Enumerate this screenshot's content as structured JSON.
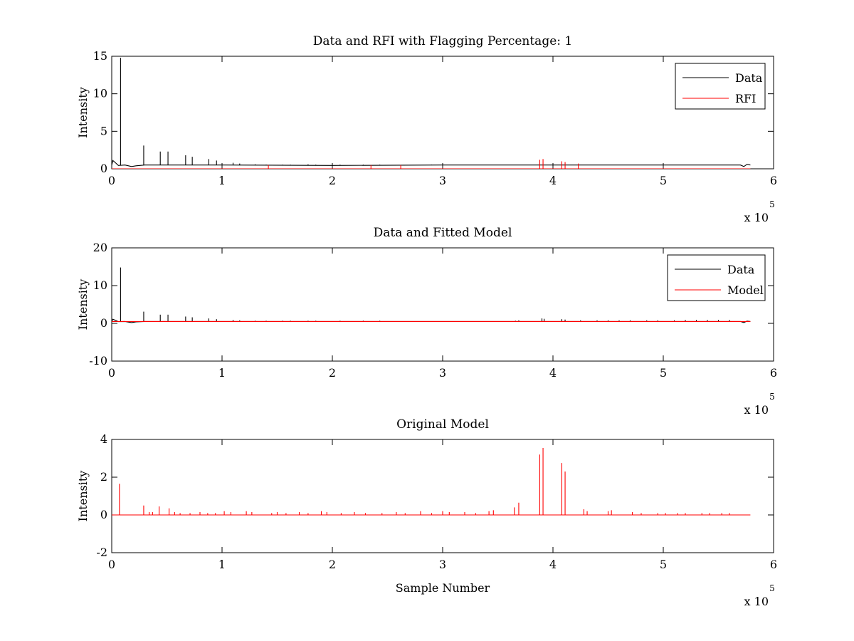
{
  "figure": {
    "background": "#ffffff",
    "colors": {
      "data": "#000000",
      "rfi": "#ff0000",
      "model": "#ff0000",
      "axes": "#000000"
    }
  },
  "chart_data": [
    {
      "type": "line",
      "title": "Data and RFI with Flagging Percentage: 1",
      "xlabel": "",
      "ylabel": "Intensity",
      "xlim": [
        0,
        6
      ],
      "ylim": [
        0,
        15
      ],
      "xticks": [
        "0",
        "1",
        "2",
        "3",
        "4",
        "5",
        "6"
      ],
      "yticks": [
        "0",
        "5",
        "10",
        "15"
      ],
      "x_multiplier": {
        "base": "x 10",
        "exponent": "5"
      },
      "legend": {
        "position": "top-right",
        "entries": [
          "Data",
          "RFI"
        ]
      },
      "series": [
        {
          "name": "Data",
          "color": "#000000",
          "baseline": [
            [
              0,
              0.5
            ],
            [
              0.01,
              1.1
            ],
            [
              0.03,
              0.85
            ],
            [
              0.06,
              0.45
            ],
            [
              0.12,
              0.5
            ],
            [
              0.18,
              0.3
            ],
            [
              0.22,
              0.4
            ],
            [
              0.3,
              0.5
            ],
            [
              1.0,
              0.5
            ],
            [
              2.0,
              0.45
            ],
            [
              3.0,
              0.5
            ],
            [
              4.0,
              0.5
            ],
            [
              5.0,
              0.5
            ],
            [
              5.7,
              0.5
            ],
            [
              5.73,
              0.3
            ],
            [
              5.76,
              0.6
            ],
            [
              5.79,
              0.5
            ]
          ],
          "peaks": [
            [
              0.08,
              14.8
            ],
            [
              0.29,
              3.1
            ],
            [
              0.44,
              2.3
            ],
            [
              0.51,
              2.3
            ],
            [
              0.67,
              1.8
            ],
            [
              0.73,
              1.6
            ],
            [
              0.88,
              1.3
            ],
            [
              0.95,
              1.1
            ],
            [
              1.1,
              0.8
            ],
            [
              1.16,
              0.7
            ],
            [
              1.3,
              0.6
            ],
            [
              1.4,
              0.55
            ],
            [
              1.55,
              0.55
            ],
            [
              1.62,
              0.55
            ],
            [
              1.78,
              0.6
            ],
            [
              1.85,
              0.55
            ],
            [
              2.07,
              0.55
            ],
            [
              2.28,
              0.55
            ],
            [
              2.43,
              0.55
            ],
            [
              2.57,
              0.5
            ],
            [
              2.78,
              0.5
            ],
            [
              2.9,
              0.55
            ],
            [
              3.05,
              0.5
            ],
            [
              3.2,
              0.5
            ],
            [
              3.38,
              0.5
            ],
            [
              3.52,
              0.5
            ],
            [
              3.66,
              0.5
            ],
            [
              4.52,
              0.5
            ],
            [
              4.76,
              0.5
            ],
            [
              5.0,
              0.5
            ],
            [
              5.2,
              0.5
            ]
          ]
        },
        {
          "name": "RFI",
          "color": "#ff0000",
          "peaks": [
            [
              1.42,
              0.5
            ],
            [
              2.35,
              0.5
            ],
            [
              3.88,
              1.2
            ],
            [
              3.91,
              1.3
            ],
            [
              4.08,
              1.0
            ],
            [
              4.11,
              0.9
            ],
            [
              4.23,
              0.7
            ],
            [
              2.62,
              0.5
            ]
          ]
        }
      ]
    },
    {
      "type": "line",
      "title": "Data and Fitted Model",
      "xlabel": "",
      "ylabel": "Intensity",
      "xlim": [
        0,
        6
      ],
      "ylim": [
        -10,
        20
      ],
      "xticks": [
        "0",
        "1",
        "2",
        "3",
        "4",
        "5",
        "6"
      ],
      "yticks": [
        "-10",
        "0",
        "10",
        "20"
      ],
      "x_multiplier": {
        "base": "x 10",
        "exponent": "5"
      },
      "legend": {
        "position": "top-right",
        "entries": [
          "Data",
          "Model"
        ]
      },
      "series": [
        {
          "name": "Data",
          "color": "#000000",
          "baseline": [
            [
              0,
              0.5
            ],
            [
              0.01,
              1.1
            ],
            [
              0.03,
              0.85
            ],
            [
              0.06,
              0.45
            ],
            [
              0.12,
              0.5
            ],
            [
              0.18,
              0.2
            ],
            [
              0.22,
              0.4
            ],
            [
              0.3,
              0.5
            ],
            [
              5.0,
              0.5
            ],
            [
              5.7,
              0.5
            ],
            [
              5.73,
              0.2
            ],
            [
              5.76,
              0.6
            ],
            [
              5.79,
              0.5
            ]
          ],
          "peaks": [
            [
              0.08,
              14.8
            ],
            [
              0.29,
              3.1
            ],
            [
              0.44,
              2.3
            ],
            [
              0.51,
              2.3
            ],
            [
              0.67,
              1.8
            ],
            [
              0.73,
              1.6
            ],
            [
              0.88,
              1.3
            ],
            [
              0.95,
              1.1
            ],
            [
              1.1,
              0.9
            ],
            [
              1.16,
              0.8
            ],
            [
              1.3,
              0.7
            ],
            [
              1.4,
              0.7
            ],
            [
              1.55,
              0.7
            ],
            [
              1.62,
              0.7
            ],
            [
              1.78,
              0.7
            ],
            [
              1.85,
              0.7
            ],
            [
              2.07,
              0.7
            ],
            [
              2.28,
              0.7
            ],
            [
              2.43,
              0.7
            ],
            [
              3.66,
              0.7
            ],
            [
              3.69,
              0.8
            ],
            [
              3.9,
              1.3
            ],
            [
              3.92,
              1.2
            ],
            [
              4.08,
              1.1
            ],
            [
              4.11,
              1.0
            ],
            [
              4.25,
              0.8
            ],
            [
              4.4,
              0.8
            ],
            [
              4.5,
              0.8
            ],
            [
              4.6,
              0.8
            ],
            [
              4.7,
              0.8
            ],
            [
              4.85,
              0.8
            ],
            [
              4.95,
              0.8
            ],
            [
              5.1,
              0.8
            ],
            [
              5.2,
              0.9
            ],
            [
              5.3,
              0.9
            ],
            [
              5.4,
              0.9
            ],
            [
              5.5,
              0.9
            ],
            [
              5.6,
              0.9
            ]
          ]
        },
        {
          "name": "Model",
          "color": "#ff0000",
          "baseline": [
            [
              0,
              0.5
            ],
            [
              5.79,
              0.5
            ]
          ],
          "peaks": []
        }
      ]
    },
    {
      "type": "line",
      "title": "Original Model",
      "xlabel": "Sample Number",
      "ylabel": "Intensity",
      "xlim": [
        0,
        6
      ],
      "ylim": [
        -2,
        4
      ],
      "xticks": [
        "0",
        "1",
        "2",
        "3",
        "4",
        "5",
        "6"
      ],
      "yticks": [
        "-2",
        "0",
        "2",
        "4"
      ],
      "x_multiplier": {
        "base": "x 10",
        "exponent": "5"
      },
      "series": [
        {
          "color": "#ff0000",
          "baseline": [
            [
              0,
              0
            ],
            [
              5.79,
              0
            ]
          ],
          "peaks": [
            [
              0.07,
              1.65
            ],
            [
              0.29,
              0.5
            ],
            [
              0.34,
              0.15
            ],
            [
              0.37,
              0.15
            ],
            [
              0.43,
              0.45
            ],
            [
              0.52,
              0.35
            ],
            [
              0.57,
              0.15
            ],
            [
              0.62,
              0.1
            ],
            [
              0.71,
              0.1
            ],
            [
              0.8,
              0.15
            ],
            [
              0.87,
              0.1
            ],
            [
              0.94,
              0.1
            ],
            [
              1.02,
              0.2
            ],
            [
              1.08,
              0.15
            ],
            [
              1.22,
              0.2
            ],
            [
              1.27,
              0.15
            ],
            [
              1.45,
              0.1
            ],
            [
              1.5,
              0.15
            ],
            [
              1.58,
              0.1
            ],
            [
              1.7,
              0.15
            ],
            [
              1.78,
              0.1
            ],
            [
              1.9,
              0.2
            ],
            [
              1.95,
              0.15
            ],
            [
              2.08,
              0.1
            ],
            [
              2.2,
              0.15
            ],
            [
              2.3,
              0.1
            ],
            [
              2.45,
              0.1
            ],
            [
              2.58,
              0.15
            ],
            [
              2.66,
              0.1
            ],
            [
              2.8,
              0.2
            ],
            [
              2.9,
              0.1
            ],
            [
              3.0,
              0.2
            ],
            [
              3.06,
              0.15
            ],
            [
              3.2,
              0.15
            ],
            [
              3.3,
              0.1
            ],
            [
              3.42,
              0.2
            ],
            [
              3.46,
              0.25
            ],
            [
              3.65,
              0.4
            ],
            [
              3.69,
              0.65
            ],
            [
              3.88,
              3.2
            ],
            [
              3.91,
              3.55
            ],
            [
              4.08,
              2.75
            ],
            [
              4.11,
              2.3
            ],
            [
              4.28,
              0.3
            ],
            [
              4.31,
              0.2
            ],
            [
              4.5,
              0.2
            ],
            [
              4.53,
              0.25
            ],
            [
              4.72,
              0.15
            ],
            [
              4.8,
              0.1
            ],
            [
              4.95,
              0.1
            ],
            [
              5.02,
              0.1
            ],
            [
              5.13,
              0.1
            ],
            [
              5.2,
              0.1
            ],
            [
              5.35,
              0.1
            ],
            [
              5.42,
              0.1
            ],
            [
              5.53,
              0.1
            ],
            [
              5.6,
              0.1
            ]
          ]
        }
      ]
    }
  ]
}
